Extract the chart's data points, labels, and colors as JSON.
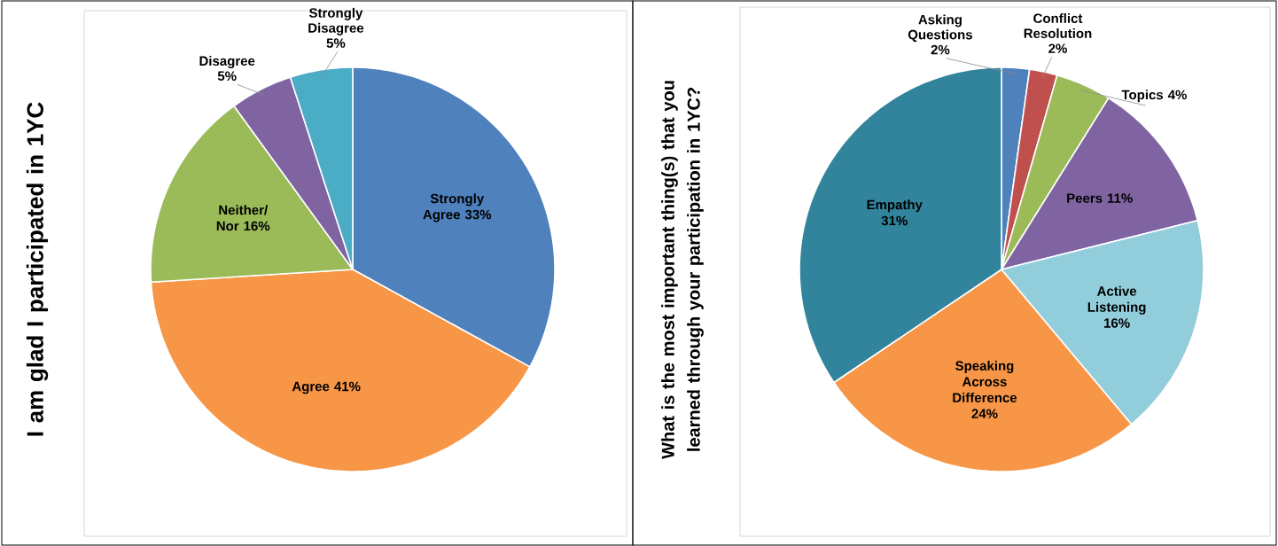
{
  "chart_data": [
    {
      "type": "pie",
      "ylabel": "I am glad I participated in 1YC",
      "categories": [
        "Strongly Agree",
        "Agree",
        "Neither/ Nor",
        "Disagree",
        "Strongly Disagree"
      ],
      "values": [
        33,
        41,
        16,
        5,
        5
      ],
      "value_labels": [
        "33%",
        "41%",
        "16%",
        "5%",
        "5%"
      ],
      "colors": [
        "#4f81bd",
        "#f79646",
        "#9bbb59",
        "#8064a2",
        "#4bacc6"
      ]
    },
    {
      "type": "pie",
      "ylabel": "What is the most important thing(s) that you learned through your participation in 1YC?",
      "categories": [
        "Asking Questions",
        "Conflict Resolution",
        "Topics",
        "Peers",
        "Active Listening",
        "Speaking Across Difference",
        "Empathy"
      ],
      "values": [
        2,
        2,
        4,
        11,
        16,
        24,
        31
      ],
      "value_labels": [
        "2%",
        "2%",
        "4%",
        "11%",
        "16%",
        "24%",
        "31%"
      ],
      "colors": [
        "#4f81bd",
        "#c0504d",
        "#9bbb59",
        "#8064a2",
        "#92cddc",
        "#f79646",
        "#31849b"
      ]
    }
  ]
}
